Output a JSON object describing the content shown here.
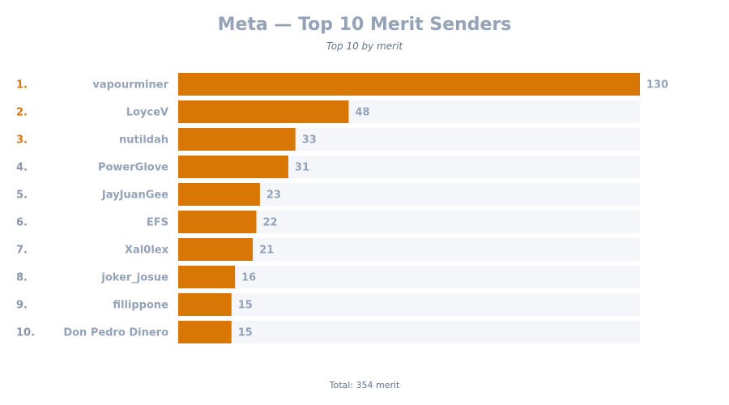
{
  "chart_data": {
    "type": "bar",
    "orientation": "horizontal",
    "title": "Meta — Top 10 Merit Senders",
    "subtitle": "Top 10 by merit",
    "footer": "Total: 354 merit",
    "categories": [
      "vapourminer",
      "LoyceV",
      "nutildah",
      "PowerGlove",
      "JayJuanGee",
      "EFS",
      "Xal0lex",
      "joker_josue",
      "fillippone",
      "Don Pedro Dinero"
    ],
    "ranks": [
      "1.",
      "2.",
      "3.",
      "4.",
      "5.",
      "6.",
      "7.",
      "8.",
      "9.",
      "10."
    ],
    "values": [
      130,
      48,
      33,
      31,
      23,
      22,
      21,
      16,
      15,
      15
    ],
    "xlim": [
      0,
      130
    ],
    "grid": false,
    "colors": {
      "bar": "#d97706",
      "track": "#f4f6f9",
      "top_rank": "#d97706",
      "rank": "#8b96a8",
      "label": "#94a3b8",
      "value": "#94a3b8"
    }
  }
}
